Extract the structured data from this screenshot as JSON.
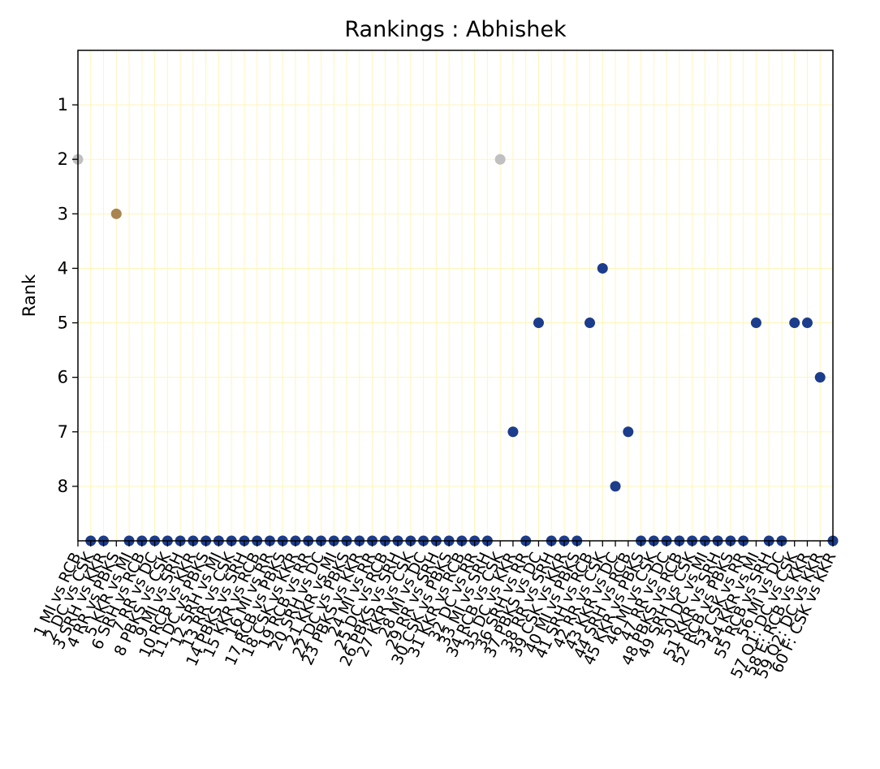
{
  "chart_data": {
    "type": "scatter",
    "title": "Rankings : Abhishek",
    "xlabel": "",
    "ylabel": "Rank",
    "y_inverted": true,
    "ylim": [
      0,
      9
    ],
    "yticks": [
      1,
      2,
      3,
      4,
      5,
      6,
      7,
      8
    ],
    "grid": true,
    "legend": "none",
    "colors": {
      "default": "#1c3c8c",
      "silver": "#c0c0c0",
      "bronze": "#a88450",
      "grid": "#fff5b8"
    },
    "categories": [
      "1 MI vs RCB",
      "2 DC vs CSK",
      "3 SRH vs KKR",
      "4 RR vs PBKS",
      "5 KKR vs MI",
      "6 SRH vs RCB",
      "7 RR vs DC",
      "8 PBKS vs CSK",
      "9 MI vs SRH",
      "10 RCB vs KKR",
      "11 DC vs PBKS",
      "12 SRH vs MI",
      "13 RR vs CSK",
      "14 PBKS vs SRH",
      "15 KKR vs RCB",
      "16 MI vs RR",
      "17 RCB vs PBKS",
      "18 CSK vs KKR",
      "19 RCB vs RR",
      "20 SRH vs DC",
      "21 KKR vs MI",
      "22 DC vs PBKS",
      "23 PBKS vs KKR",
      "24 MI vs RR",
      "25 DC vs RCB",
      "26 PBKS vs SRH",
      "27 KKR vs CSK",
      "28 MI vs DC",
      "29 RR vs SRH",
      "30 CSK vs PBKS",
      "31 KKR vs RCB",
      "32 DC vs RR",
      "33 MI vs SRH",
      "34 RCB vs CSK",
      "35 DC vs KKR",
      "36 SRH vs RR",
      "37 PBKS vs DC",
      "38 RR vs SRH",
      "39 CSK vs KKR",
      "40 MI vs PBKS",
      "41 SRH vs RCB",
      "42 RR vs CSK",
      "43 KKR vs DC",
      "44 SRH vs RCB",
      "45 KKR vs PBKS",
      "46 MI vs CSK",
      "47 RR vs DC",
      "48 PBKS vs RCB",
      "49 SRH vs CSK",
      "50 DC vs MI",
      "51 KKR vs SRH",
      "52 RCB vs PBKS",
      "53 CSK vs RR",
      "54 KKR vs MI",
      "55 RCB vs SRH",
      "56 MI vs DC",
      "57 Q1: DC vs CSK",
      "58 E: RCB vs KKR",
      "59 Q2: DC vs KKR",
      "60 F: CSK vs KKR"
    ],
    "series": [
      {
        "values": [
          2,
          null,
          null,
          3,
          null,
          null,
          null,
          null,
          null,
          null,
          null,
          null,
          null,
          null,
          null,
          null,
          null,
          null,
          null,
          null,
          null,
          null,
          null,
          null,
          null,
          null,
          null,
          null,
          null,
          null,
          null,
          null,
          null,
          2,
          7,
          null,
          5,
          null,
          null,
          null,
          5,
          4,
          8,
          7,
          null,
          null,
          null,
          null,
          null,
          null,
          null,
          null,
          null,
          5,
          null,
          null,
          5,
          5,
          6,
          null
        ],
        "point_colors": [
          "silver",
          "default",
          "default",
          "bronze",
          "default",
          "default",
          "default",
          "default",
          "default",
          "default",
          "default",
          "default",
          "default",
          "default",
          "default",
          "default",
          "default",
          "default",
          "default",
          "default",
          "default",
          "default",
          "default",
          "default",
          "default",
          "default",
          "default",
          "default",
          "default",
          "default",
          "default",
          "default",
          "default",
          "silver",
          "default",
          "default",
          "default",
          "default",
          "default",
          "default",
          "default",
          "default",
          "default",
          "default",
          "default",
          "default",
          "default",
          "default",
          "default",
          "default",
          "default",
          "default",
          "default",
          "default",
          "default",
          "default",
          "default",
          "default",
          "default",
          "default"
        ]
      }
    ]
  }
}
